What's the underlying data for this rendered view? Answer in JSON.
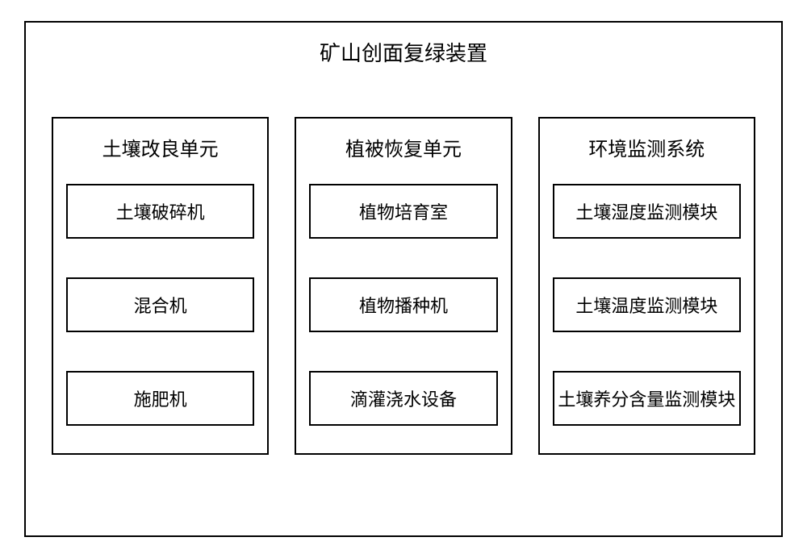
{
  "diagram": {
    "type": "tree",
    "title": "矿山创面复绿装置",
    "title_fontsize": 26,
    "border_color": "#000000",
    "background_color": "#ffffff",
    "text_color": "#000000",
    "font_family": "SimSun",
    "columns": [
      {
        "title": "土壤改良单元",
        "items": [
          "土壤破碎机",
          "混合机",
          "施肥机"
        ]
      },
      {
        "title": "植被恢复单元",
        "items": [
          "植物培育室",
          "植物播种机",
          "滴灌浇水设备"
        ]
      },
      {
        "title": "环境监测系统",
        "items": [
          "土壤湿度监测模块",
          "土壤温度监测模块",
          "土壤养分含量监测模块"
        ]
      }
    ],
    "column_title_fontsize": 24,
    "item_fontsize": 22,
    "border_width": 2
  }
}
